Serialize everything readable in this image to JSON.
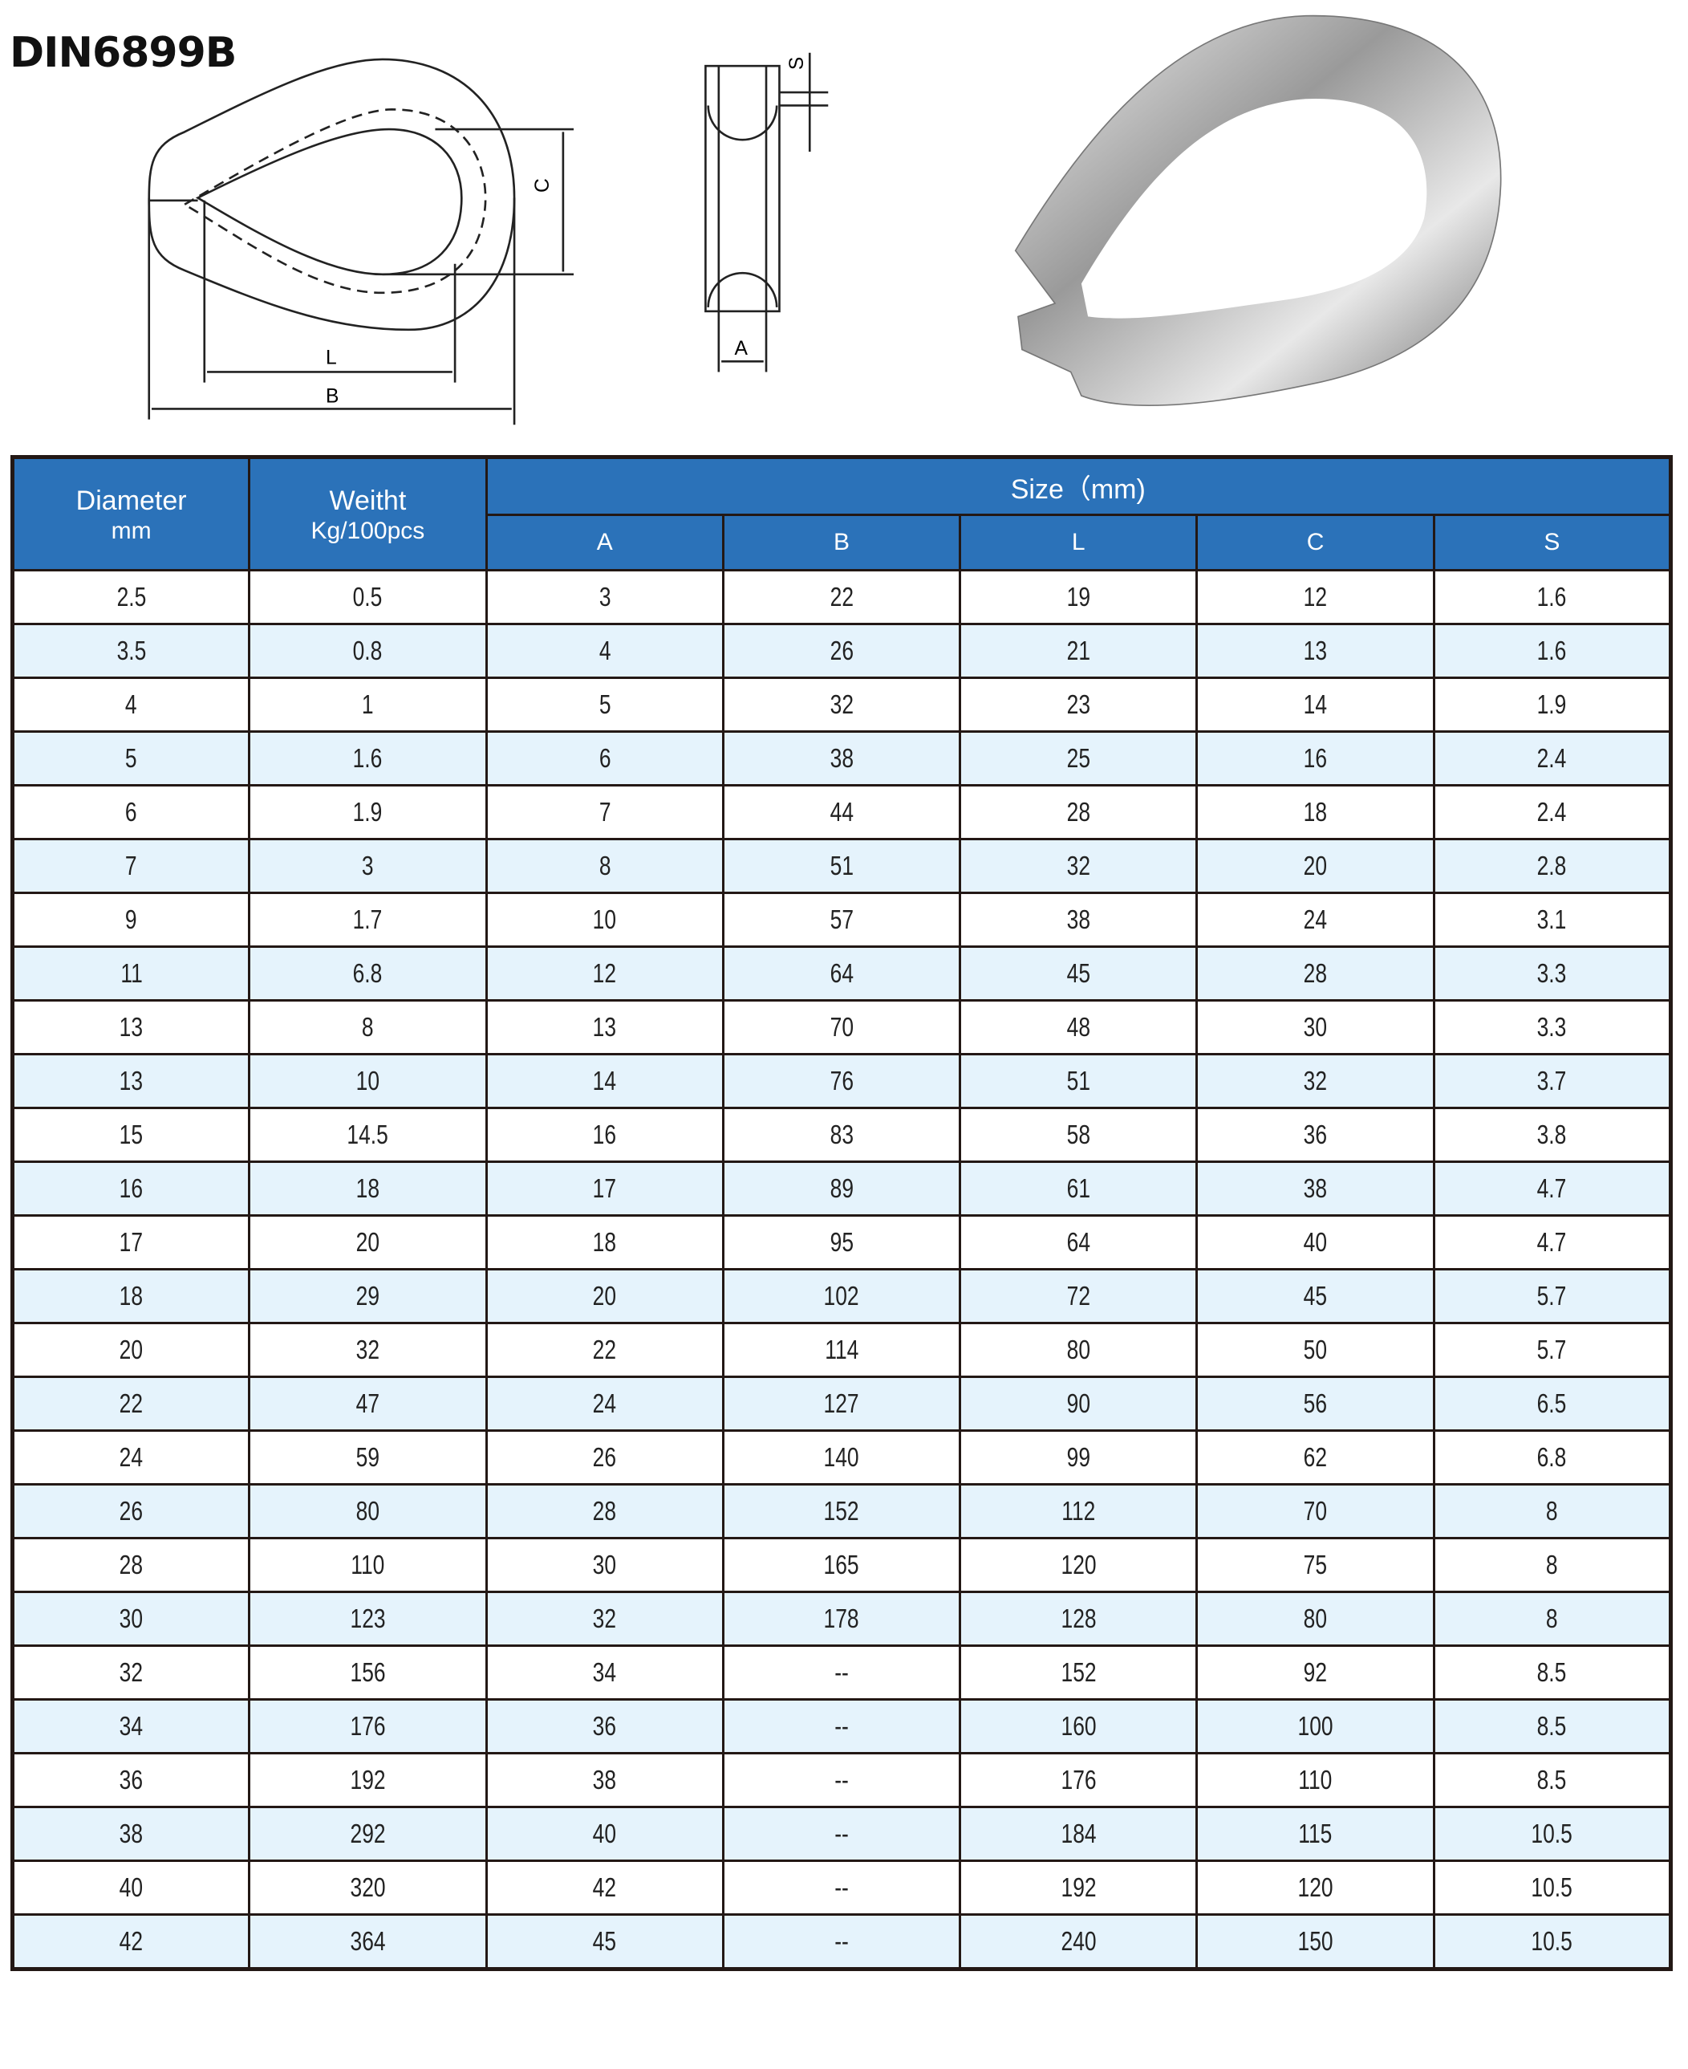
{
  "title": "DIN6899B",
  "diagram_labels": {
    "L": "L",
    "B": "B",
    "C": "C",
    "A": "A",
    "S": "S"
  },
  "table": {
    "headers": {
      "diameter": "Diameter",
      "diameter_unit": "mm",
      "weight": "Weitht",
      "weight_unit": "Kg/100pcs",
      "size": "Size（mm)",
      "sub": [
        "A",
        "B",
        "L",
        "C",
        "S"
      ]
    },
    "rows": [
      [
        "2.5",
        "0.5",
        "3",
        "22",
        "19",
        "12",
        "1.6"
      ],
      [
        "3.5",
        "0.8",
        "4",
        "26",
        "21",
        "13",
        "1.6"
      ],
      [
        "4",
        "1",
        "5",
        "32",
        "23",
        "14",
        "1.9"
      ],
      [
        "5",
        "1.6",
        "6",
        "38",
        "25",
        "16",
        "2.4"
      ],
      [
        "6",
        "1.9",
        "7",
        "44",
        "28",
        "18",
        "2.4"
      ],
      [
        "7",
        "3",
        "8",
        "51",
        "32",
        "20",
        "2.8"
      ],
      [
        "9",
        "1.7",
        "10",
        "57",
        "38",
        "24",
        "3.1"
      ],
      [
        "11",
        "6.8",
        "12",
        "64",
        "45",
        "28",
        "3.3"
      ],
      [
        "13",
        "8",
        "13",
        "70",
        "48",
        "30",
        "3.3"
      ],
      [
        "13",
        "10",
        "14",
        "76",
        "51",
        "32",
        "3.7"
      ],
      [
        "15",
        "14.5",
        "16",
        "83",
        "58",
        "36",
        "3.8"
      ],
      [
        "16",
        "18",
        "17",
        "89",
        "61",
        "38",
        "4.7"
      ],
      [
        "17",
        "20",
        "18",
        "95",
        "64",
        "40",
        "4.7"
      ],
      [
        "18",
        "29",
        "20",
        "102",
        "72",
        "45",
        "5.7"
      ],
      [
        "20",
        "32",
        "22",
        "114",
        "80",
        "50",
        "5.7"
      ],
      [
        "22",
        "47",
        "24",
        "127",
        "90",
        "56",
        "6.5"
      ],
      [
        "24",
        "59",
        "26",
        "140",
        "99",
        "62",
        "6.8"
      ],
      [
        "26",
        "80",
        "28",
        "152",
        "112",
        "70",
        "8"
      ],
      [
        "28",
        "110",
        "30",
        "165",
        "120",
        "75",
        "8"
      ],
      [
        "30",
        "123",
        "32",
        "178",
        "128",
        "80",
        "8"
      ],
      [
        "32",
        "156",
        "34",
        "--",
        "152",
        "92",
        "8.5"
      ],
      [
        "34",
        "176",
        "36",
        "--",
        "160",
        "100",
        "8.5"
      ],
      [
        "36",
        "192",
        "38",
        "--",
        "176",
        "110",
        "8.5"
      ],
      [
        "38",
        "292",
        "40",
        "--",
        "184",
        "115",
        "10.5"
      ],
      [
        "40",
        "320",
        "42",
        "--",
        "192",
        "120",
        "10.5"
      ],
      [
        "42",
        "364",
        "45",
        "--",
        "240",
        "150",
        "10.5"
      ]
    ]
  },
  "colors": {
    "header_bg": "#2b72b9",
    "alt_row_bg": "#e5f3fc",
    "border": "#231815"
  }
}
